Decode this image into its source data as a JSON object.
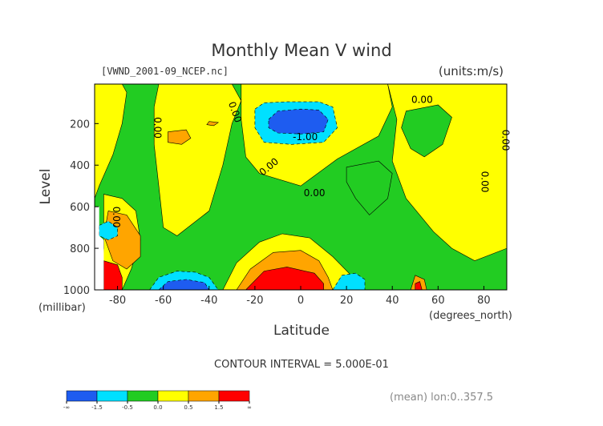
{
  "chart_data": {
    "type": "heatmap",
    "title": "Monthly Mean V wind",
    "subtitle_left": "[VWND_2001-09_NCEP.nc]",
    "subtitle_right": "(units:m/s)",
    "xlabel": "Latitude",
    "xunit": "(degrees_north)",
    "ylabel": "Level",
    "yunit": "(millibar)",
    "xlim": [
      -90,
      90
    ],
    "ylim": [
      1000,
      10
    ],
    "x_ticks": [
      -80,
      -60,
      -40,
      -20,
      0,
      20,
      40,
      60,
      80
    ],
    "y_ticks": [
      200,
      400,
      600,
      800,
      1000
    ],
    "contour_interval_text": "CONTOUR INTERVAL = 5.000E-01",
    "footer_text": "(mean) lon:0..357.5",
    "contour_labels": [
      {
        "text": "0.00",
        "x": -64,
        "y": 220,
        "angle": 90
      },
      {
        "text": "0.00",
        "x": -30,
        "y": 150,
        "angle": 70
      },
      {
        "text": "-1.00",
        "x": 2,
        "y": 280,
        "angle": 0
      },
      {
        "text": "0.00",
        "x": 53,
        "y": 100,
        "angle": 0
      },
      {
        "text": "0.00",
        "x": 88,
        "y": 280,
        "angle": 90
      },
      {
        "text": "0.00",
        "x": -13,
        "y": 420,
        "angle": -40
      },
      {
        "text": "0.00",
        "x": 6,
        "y": 550,
        "angle": 0
      },
      {
        "text": "0.00",
        "x": 79,
        "y": 480,
        "angle": 90
      },
      {
        "text": "0.00",
        "x": -82,
        "y": 650,
        "angle": 90
      }
    ],
    "colorbar": {
      "colors": [
        "#1e5cf0",
        "#00e0ff",
        "#22cc22",
        "#ffff00",
        "#ffa500",
        "#ff0000"
      ],
      "tick_labels": [
        "-∞",
        "-1.5",
        "-0.5",
        "0.0",
        "0.5",
        "1.5",
        "∞"
      ]
    },
    "regions": [
      {
        "level": "green",
        "color": "#22cc22",
        "points": [
          [
            -90,
            10
          ],
          [
            90,
            10
          ],
          [
            90,
            1000
          ],
          [
            -90,
            1000
          ]
        ]
      },
      {
        "level": "yellow",
        "color": "#ffff00",
        "points": [
          [
            -90,
            10
          ],
          [
            -78,
            10
          ],
          [
            -76,
            50
          ],
          [
            -78,
            200
          ],
          [
            -82,
            350
          ],
          [
            -88,
            500
          ],
          [
            -90,
            560
          ]
        ]
      },
      {
        "level": "yellow",
        "color": "#ffff00",
        "points": [
          [
            -62,
            10
          ],
          [
            -30,
            10
          ],
          [
            -26,
            90
          ],
          [
            -30,
            200
          ],
          [
            -34,
            400
          ],
          [
            -40,
            620
          ],
          [
            -54,
            740
          ],
          [
            -60,
            700
          ],
          [
            -62,
            500
          ],
          [
            -64,
            300
          ],
          [
            -64,
            120
          ]
        ]
      },
      {
        "level": "yellow",
        "color": "#ffff00",
        "points": [
          [
            -26,
            10
          ],
          [
            38,
            10
          ],
          [
            40,
            120
          ],
          [
            34,
            260
          ],
          [
            16,
            370
          ],
          [
            0,
            500
          ],
          [
            -18,
            440
          ],
          [
            -24,
            360
          ],
          [
            -26,
            180
          ]
        ]
      },
      {
        "level": "yellow",
        "color": "#ffff00",
        "points": [
          [
            38,
            10
          ],
          [
            90,
            10
          ],
          [
            90,
            800
          ],
          [
            76,
            860
          ],
          [
            66,
            800
          ],
          [
            58,
            720
          ],
          [
            46,
            560
          ],
          [
            40,
            380
          ],
          [
            42,
            180
          ]
        ]
      },
      {
        "level": "yellow",
        "color": "#ffff00",
        "points": [
          [
            -34,
            1000
          ],
          [
            -28,
            870
          ],
          [
            -18,
            770
          ],
          [
            -8,
            730
          ],
          [
            4,
            750
          ],
          [
            14,
            840
          ],
          [
            22,
            930
          ],
          [
            26,
            1000
          ]
        ]
      },
      {
        "level": "yellow",
        "color": "#ffff00",
        "points": [
          [
            -86,
            540
          ],
          [
            -78,
            560
          ],
          [
            -72,
            620
          ],
          [
            -70,
            760
          ],
          [
            -74,
            900
          ],
          [
            -78,
            1000
          ],
          [
            -88,
            1000
          ],
          [
            -86,
            800
          ]
        ]
      },
      {
        "level": "green",
        "color": "#22cc22",
        "points": [
          [
            46,
            140
          ],
          [
            60,
            110
          ],
          [
            66,
            170
          ],
          [
            62,
            300
          ],
          [
            54,
            360
          ],
          [
            48,
            320
          ],
          [
            44,
            220
          ]
        ]
      },
      {
        "level": "green",
        "color": "#22cc22",
        "points": [
          [
            20,
            410
          ],
          [
            34,
            380
          ],
          [
            40,
            440
          ],
          [
            38,
            560
          ],
          [
            30,
            640
          ],
          [
            24,
            560
          ],
          [
            20,
            480
          ]
        ]
      },
      {
        "level": "orange",
        "color": "#ffa500",
        "points": [
          [
            -58,
            240
          ],
          [
            -50,
            230
          ],
          [
            -48,
            270
          ],
          [
            -52,
            300
          ],
          [
            -58,
            290
          ]
        ]
      },
      {
        "level": "orange",
        "color": "#ffa500",
        "points": [
          [
            -40,
            190
          ],
          [
            -36,
            195
          ],
          [
            -38,
            210
          ],
          [
            -41,
            205
          ]
        ]
      },
      {
        "level": "orange",
        "color": "#ffa500",
        "points": [
          [
            -84,
            620
          ],
          [
            -76,
            640
          ],
          [
            -70,
            740
          ],
          [
            -70,
            840
          ],
          [
            -76,
            900
          ],
          [
            -82,
            860
          ],
          [
            -86,
            740
          ]
        ]
      },
      {
        "level": "orange",
        "color": "#ffa500",
        "points": [
          [
            -28,
            1000
          ],
          [
            -22,
            900
          ],
          [
            -12,
            820
          ],
          [
            0,
            810
          ],
          [
            8,
            860
          ],
          [
            12,
            940
          ],
          [
            14,
            1000
          ]
        ]
      },
      {
        "level": "orange",
        "color": "#ffa500",
        "points": [
          [
            48,
            1000
          ],
          [
            50,
            930
          ],
          [
            54,
            950
          ],
          [
            55,
            1000
          ]
        ]
      },
      {
        "level": "red",
        "color": "#ff0000",
        "points": [
          [
            -86,
            860
          ],
          [
            -80,
            880
          ],
          [
            -78,
            940
          ],
          [
            -78,
            1000
          ],
          [
            -86,
            1000
          ]
        ]
      },
      {
        "level": "red",
        "color": "#ff0000",
        "points": [
          [
            -24,
            1000
          ],
          [
            -16,
            910
          ],
          [
            -6,
            890
          ],
          [
            6,
            920
          ],
          [
            10,
            970
          ],
          [
            10,
            1000
          ]
        ]
      },
      {
        "level": "red",
        "color": "#ff0000",
        "points": [
          [
            50,
            970
          ],
          [
            52,
            960
          ],
          [
            53,
            1000
          ],
          [
            50,
            1000
          ]
        ]
      },
      {
        "level": "cyan",
        "color": "#00e0ff",
        "points": [
          [
            -20,
            130
          ],
          [
            -16,
            100
          ],
          [
            -6,
            95
          ],
          [
            8,
            95
          ],
          [
            14,
            120
          ],
          [
            16,
            220
          ],
          [
            10,
            290
          ],
          [
            -4,
            300
          ],
          [
            -16,
            290
          ],
          [
            -20,
            220
          ]
        ]
      },
      {
        "level": "cyan",
        "color": "#00e0ff",
        "points": [
          [
            -66,
            1000
          ],
          [
            -62,
            940
          ],
          [
            -54,
            910
          ],
          [
            -46,
            915
          ],
          [
            -40,
            940
          ],
          [
            -36,
            1000
          ]
        ]
      },
      {
        "level": "cyan",
        "color": "#00e0ff",
        "points": [
          [
            14,
            1000
          ],
          [
            18,
            930
          ],
          [
            24,
            920
          ],
          [
            28,
            950
          ],
          [
            28,
            1000
          ]
        ]
      },
      {
        "level": "cyan",
        "color": "#00e0ff",
        "points": [
          [
            -88,
            690
          ],
          [
            -84,
            670
          ],
          [
            -80,
            700
          ],
          [
            -80,
            740
          ],
          [
            -84,
            760
          ],
          [
            -88,
            740
          ]
        ]
      },
      {
        "level": "blue",
        "color": "#1e5cf0",
        "points": [
          [
            -14,
            180
          ],
          [
            -10,
            140
          ],
          [
            0,
            130
          ],
          [
            8,
            135
          ],
          [
            12,
            180
          ],
          [
            10,
            240
          ],
          [
            0,
            250
          ],
          [
            -10,
            245
          ],
          [
            -14,
            220
          ]
        ]
      },
      {
        "level": "blue",
        "color": "#1e5cf0",
        "points": [
          [
            -62,
            1000
          ],
          [
            -58,
            960
          ],
          [
            -50,
            950
          ],
          [
            -42,
            965
          ],
          [
            -40,
            1000
          ]
        ]
      },
      {
        "level": "white",
        "color": "#ffffff",
        "points": [
          [
            -90,
            600
          ],
          [
            -88,
            600
          ],
          [
            -88,
            740
          ],
          [
            -86,
            760
          ],
          [
            -86,
            1000
          ],
          [
            -90,
            1000
          ]
        ]
      }
    ]
  }
}
